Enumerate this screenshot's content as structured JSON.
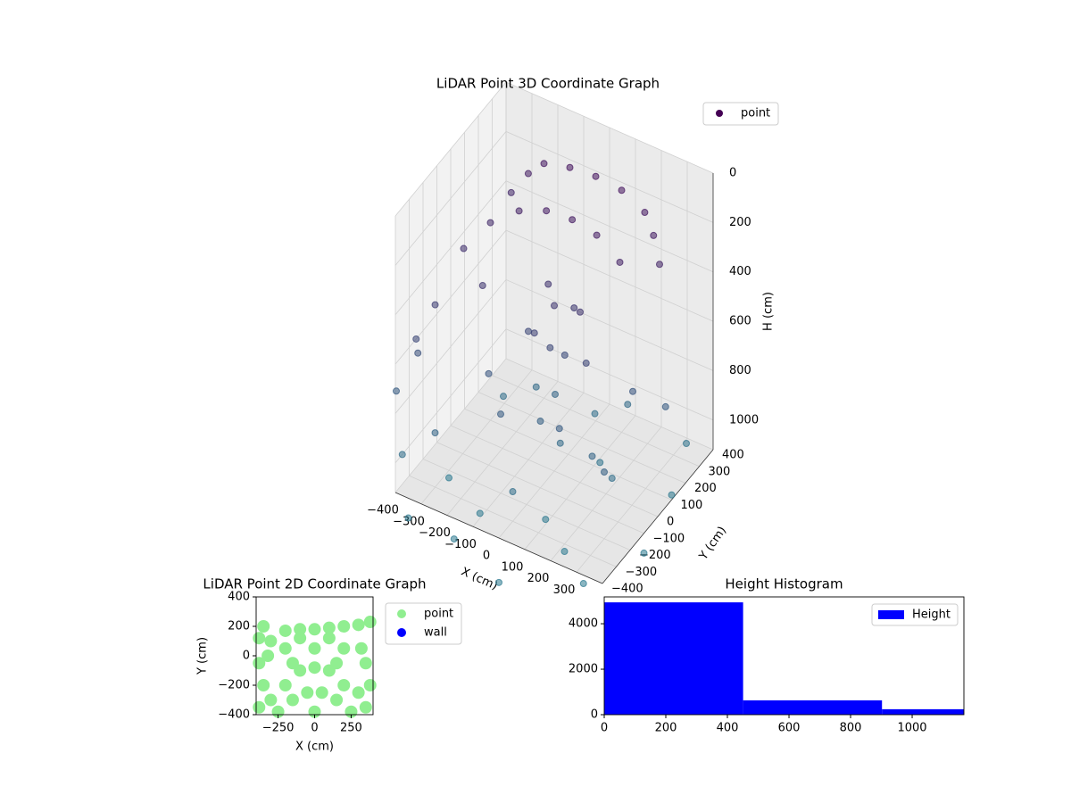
{
  "chart_data": [
    {
      "type": "scatter3d",
      "title": "LiDAR Point 3D Coordinate Graph",
      "xlabel": "X (cm)",
      "ylabel": "Y (cm)",
      "zlabel": "H (cm)",
      "xlim": [
        -400,
        400
      ],
      "ylim": [
        -400,
        400
      ],
      "zlim": [
        0,
        1120
      ],
      "z_inverted": true,
      "xticks": [
        {
          "value": -400,
          "label": "−400"
        },
        {
          "value": -300,
          "label": "−300"
        },
        {
          "value": -200,
          "label": "−200"
        },
        {
          "value": -100,
          "label": "−100"
        },
        0,
        100,
        200,
        300
      ],
      "yticks": [
        {
          "value": -400,
          "label": "−400"
        },
        {
          "value": -300,
          "label": "−300"
        },
        {
          "value": -200,
          "label": "−200"
        },
        {
          "value": -100,
          "label": "−100"
        },
        0,
        100,
        200,
        300,
        400
      ],
      "zticks": [
        0,
        200,
        400,
        600,
        800,
        1000
      ],
      "legend": "upper right",
      "series": [
        {
          "name": "point",
          "color": "#440154",
          "colormap": [
            "#440154",
            "#2a788e"
          ],
          "x": [
            -300,
            -250,
            -200,
            -100,
            0,
            100,
            200,
            250,
            300,
            -300,
            -200,
            -100,
            0,
            100,
            200,
            -350,
            -250,
            -50,
            0,
            50,
            100,
            -50,
            0,
            30,
            -100,
            150,
            -380,
            -400,
            -420,
            -450,
            -300,
            -200,
            -100,
            0,
            100,
            200,
            300,
            250,
            350,
            -150,
            50,
            150,
            -250,
            0,
            -100,
            100,
            200,
            300,
            -300,
            -200,
            0,
            400,
            400,
            350,
            -400,
            150,
            -50,
            50,
            -350,
            250
          ],
          "y": [
            250,
            280,
            300,
            300,
            300,
            300,
            280,
            250,
            200,
            100,
            120,
            130,
            130,
            120,
            100,
            0,
            -50,
            50,
            0,
            50,
            0,
            -50,
            -30,
            20,
            0,
            -50,
            -150,
            -250,
            -200,
            -300,
            -300,
            -100,
            -200,
            -100,
            -150,
            -100,
            -200,
            100,
            150,
            150,
            200,
            250,
            100,
            -300,
            -350,
            -250,
            -300,
            -350,
            -200,
            -350,
            -400,
            -100,
            100,
            300,
            -350,
            50,
            100,
            -50,
            -400,
            -50
          ],
          "z": [
            300,
            220,
            170,
            140,
            130,
            140,
            170,
            220,
            280,
            320,
            240,
            200,
            190,
            200,
            250,
            380,
            450,
            420,
            450,
            470,
            430,
            550,
            600,
            650,
            600,
            580,
            520,
            600,
            700,
            800,
            900,
            750,
            800,
            850,
            800,
            900,
            850,
            750,
            800,
            950,
            1000,
            950,
            1000,
            1000,
            1100,
            1100,
            1150,
            1200,
            1150,
            1250,
            1300,
            1200,
            1100,
            1050,
            1000,
            1050,
            900,
            950,
            1200,
            1000
          ]
        }
      ]
    },
    {
      "type": "scatter",
      "title": "LiDAR Point 2D Coordinate Graph",
      "xlabel": "X (cm)",
      "ylabel": "Y (cm)",
      "xlim": [
        -400,
        400
      ],
      "ylim": [
        -400,
        400
      ],
      "xticks": [
        {
          "value": -250,
          "label": "−250"
        },
        0,
        250
      ],
      "yticks": [
        {
          "value": -400,
          "label": "−400"
        },
        {
          "value": -200,
          "label": "−200"
        },
        0,
        200,
        400
      ],
      "legend": "outside right",
      "series": [
        {
          "name": "point",
          "color": "#90ee90",
          "x": [
            -380,
            -300,
            -200,
            -100,
            0,
            100,
            200,
            300,
            380,
            -350,
            -380,
            -350,
            -380,
            -300,
            -320,
            350,
            380,
            350,
            300,
            320,
            -150,
            150,
            -100,
            100,
            0,
            -200,
            200,
            -150,
            150,
            0,
            -250,
            250,
            -50,
            50,
            0,
            -200,
            200,
            -100,
            100
          ],
          "y": [
            120,
            100,
            170,
            180,
            180,
            190,
            200,
            210,
            230,
            200,
            -50,
            -200,
            -350,
            -300,
            0,
            -50,
            -200,
            -350,
            -250,
            50,
            -50,
            -50,
            -100,
            -100,
            -80,
            -200,
            -200,
            -300,
            -300,
            -380,
            -380,
            -380,
            -250,
            -250,
            50,
            50,
            50,
            120,
            120
          ]
        },
        {
          "name": "wall",
          "color": "#0000ff",
          "x": [],
          "y": []
        }
      ]
    },
    {
      "type": "histogram",
      "title": "Height Histogram",
      "name": "Height",
      "color": "#0000ff",
      "bins": [
        0,
        451,
        902,
        1353
      ],
      "values": [
        4940,
        630,
        240
      ],
      "xlim": [
        0,
        1168
      ],
      "ylim": [
        0,
        5180
      ],
      "xticks": [
        0,
        200,
        400,
        600,
        800,
        1000
      ],
      "yticks": [
        0,
        2000,
        4000
      ],
      "legend": "upper right"
    }
  ]
}
